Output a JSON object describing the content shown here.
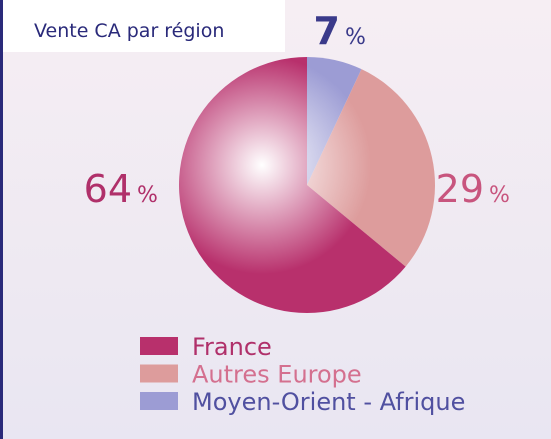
{
  "chart_data": {
    "type": "pie",
    "title": "Vente CA par région",
    "categories": [
      "France",
      "Autres Europe",
      "Moyen-Orient - Afrique"
    ],
    "values": [
      64,
      29,
      7
    ],
    "unit": "%",
    "colors": [
      "#b8306c",
      "#dd9c9c",
      "#9c9cd4"
    ],
    "label_colors": [
      "#b0306a",
      "#c8557e",
      "#3a3a8a"
    ],
    "legend_text_colors": [
      "#b0306a",
      "#d4708f",
      "#5050a0"
    ],
    "start_angle": 0,
    "direction": "clockwise"
  }
}
